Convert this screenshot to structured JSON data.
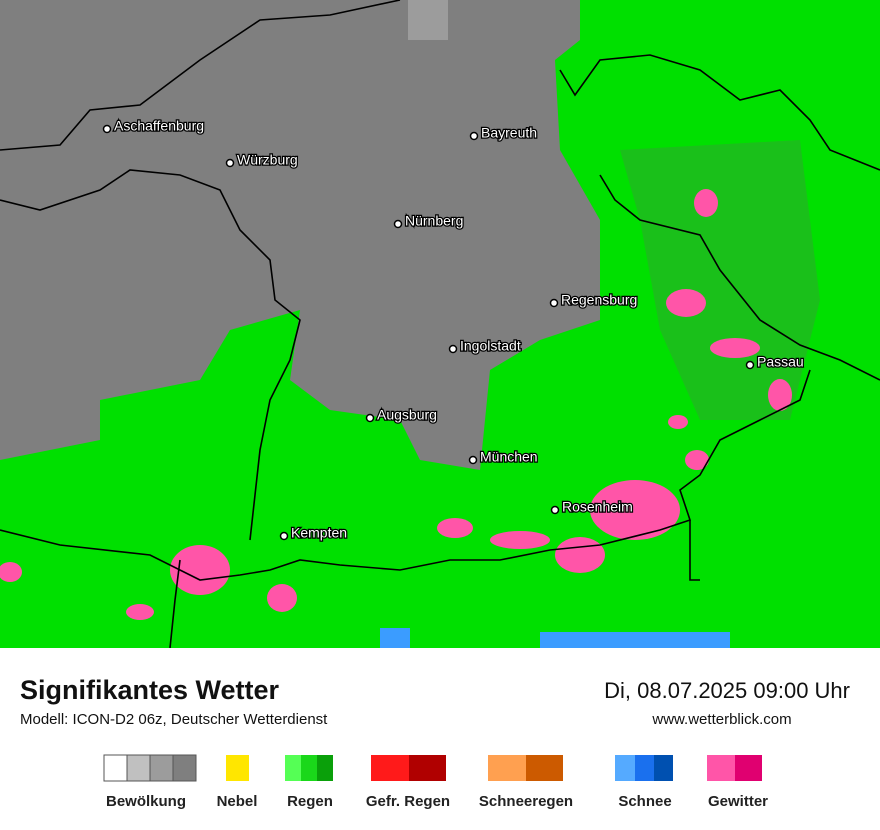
{
  "map": {
    "cities": [
      {
        "name": "Aschaffenburg"
      },
      {
        "name": "Würzburg"
      },
      {
        "name": "Bayreuth"
      },
      {
        "name": "Nürnberg"
      },
      {
        "name": "Regensburg"
      },
      {
        "name": "Ingolstadt"
      },
      {
        "name": "Passau"
      },
      {
        "name": "Augsburg"
      },
      {
        "name": "München"
      },
      {
        "name": "Rosenheim"
      },
      {
        "name": "Kempten"
      }
    ]
  },
  "footer": {
    "title": "Signifikantes Wetter",
    "subtitle": "Modell: ICON-D2 06z, Deutscher Wetterdienst",
    "datetime": "Di, 08.07.2025 09:00 Uhr",
    "website": "www.wetterblick.com"
  },
  "legend": [
    "Bewölkung",
    "Nebel",
    "Regen",
    "Gefr. Regen",
    "Schneeregen",
    "Schnee",
    "Gewitter"
  ]
}
